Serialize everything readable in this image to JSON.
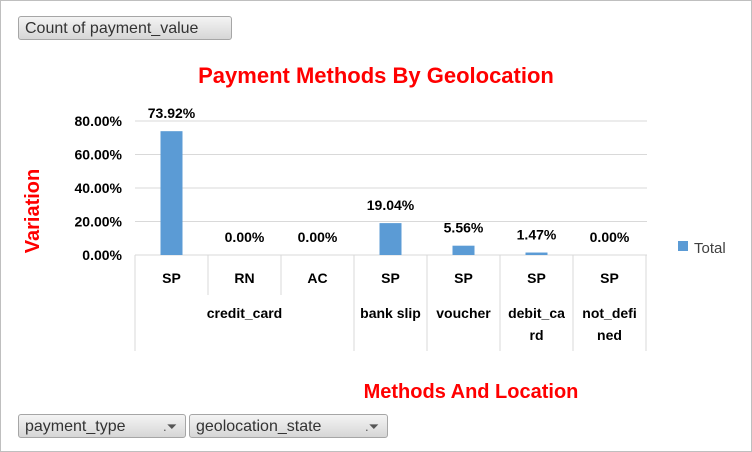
{
  "pivot": {
    "value_field": "Count of payment_value",
    "row_fields": [
      {
        "label": "payment_type",
        "filter_icon": "filter-icon"
      },
      {
        "label": "geolocation_state",
        "filter_icon": "filter-icon"
      }
    ]
  },
  "chart_data": {
    "type": "bar",
    "title": "Payment Methods By Geolocation",
    "xlabel": "Methods And Location",
    "ylabel": "Variation",
    "y_tick_labels": [
      "0.00%",
      "20.00%",
      "40.00%",
      "60.00%",
      "80.00%"
    ],
    "ylim": [
      0,
      0.8
    ],
    "grid": true,
    "legend_position": "right",
    "categories": [
      {
        "group": "credit_card",
        "item": "SP",
        "label": "73.92%"
      },
      {
        "group": "credit_card",
        "item": "RN",
        "label": "0.00%"
      },
      {
        "group": "credit_card",
        "item": "AC",
        "label": "0.00%"
      },
      {
        "group": "bank slip",
        "item": "SP",
        "label": "19.04%"
      },
      {
        "group": "voucher",
        "item": "SP",
        "label": "5.56%"
      },
      {
        "group": "debit_card",
        "item": "SP",
        "label": "1.47%"
      },
      {
        "group": "not_defined",
        "item": "SP",
        "label": "0.00%"
      }
    ],
    "groups": [
      {
        "name": "credit_card",
        "lines": [
          "credit_card"
        ],
        "span": 3
      },
      {
        "name": "bank slip",
        "lines": [
          "bank slip"
        ],
        "span": 1
      },
      {
        "name": "voucher",
        "lines": [
          "voucher"
        ],
        "span": 1
      },
      {
        "name": "debit_card",
        "lines": [
          "debit_ca",
          "rd"
        ],
        "span": 1
      },
      {
        "name": "not_defined",
        "lines": [
          "not_defi",
          "ned"
        ],
        "span": 1
      }
    ],
    "series": [
      {
        "name": "Total",
        "color": "#5b9bd5",
        "values": [
          0.7392,
          0.0,
          0.0,
          0.1904,
          0.0556,
          0.0147,
          0.0
        ]
      }
    ]
  }
}
